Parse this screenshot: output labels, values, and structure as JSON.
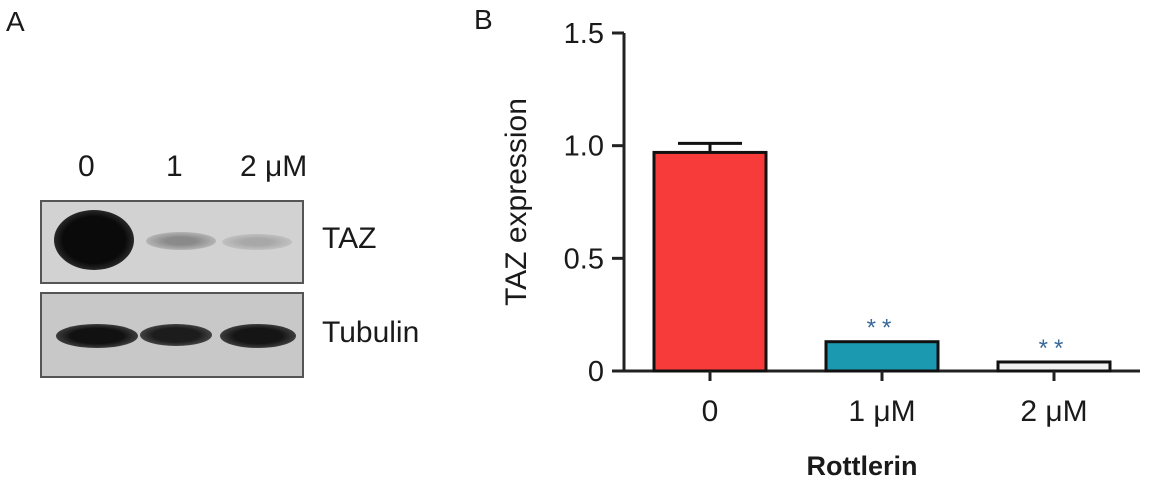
{
  "panels": {
    "a": "A",
    "b": "B"
  },
  "blot": {
    "lanes": [
      "0",
      "1",
      "2 μM"
    ],
    "rows": [
      {
        "name": "TAZ",
        "intensity": [
          1.0,
          0.35,
          0.2
        ]
      },
      {
        "name": "Tubulin",
        "intensity": [
          0.95,
          0.85,
          0.9
        ]
      }
    ]
  },
  "chart_data": {
    "type": "bar",
    "categories": [
      "0",
      "1 μM",
      "2 μM"
    ],
    "values": [
      0.97,
      0.13,
      0.04
    ],
    "error": [
      0.04,
      0.0,
      0.0
    ],
    "colors": [
      "#f73b3b",
      "#1a99b0",
      "#f2f2f2"
    ],
    "significance": [
      "",
      "**",
      "**"
    ],
    "xlabel": "Rottlerin",
    "ylabel": "TAZ expression",
    "ylim": [
      0,
      1.5
    ],
    "yticks": [
      "0",
      "0.5",
      "1.0",
      "1.5"
    ],
    "grid": false
  }
}
